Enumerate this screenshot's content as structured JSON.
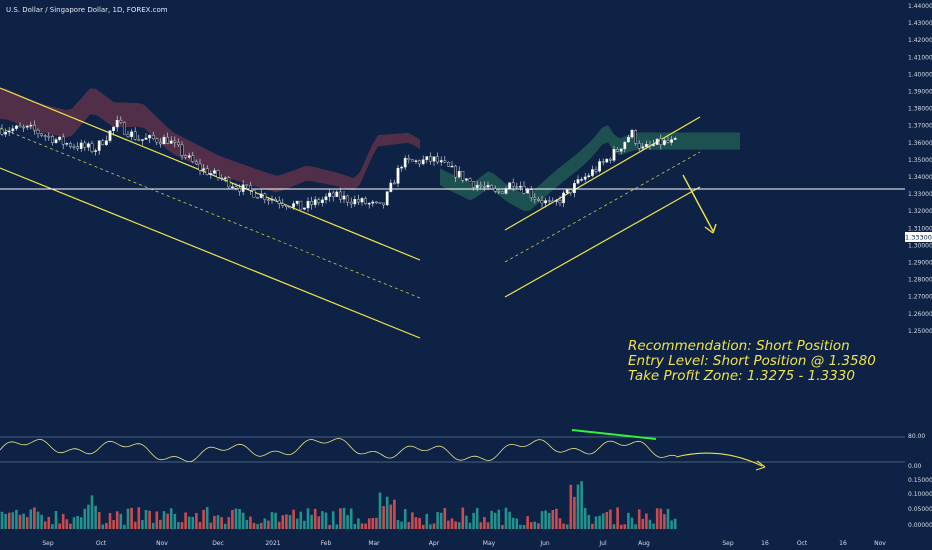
{
  "title": "U.S. Dollar / Singapore Dollar, 1D, FOREX.com",
  "colors": {
    "background": "#0d2245",
    "channel": "#f2e34a",
    "candle_up": "#26a69a",
    "candle_down": "#ef5350",
    "candle_wick": "#dfe5ee",
    "cloud_bear": "#8a3b4a",
    "cloud_bull": "#2e7d5e",
    "oscillator": "#e9e38a",
    "divergence": "#2ef23a",
    "current_price_line": "#ffffff",
    "tick_text": "#d8dde6"
  },
  "chart_data": {
    "type": "candlestick",
    "instrument": "U.S. Dollar / Singapore Dollar",
    "timeframe": "1D",
    "source": "FOREX.com",
    "x_labels": [
      "Sep",
      "Oct",
      "Nov",
      "Dec",
      "2021",
      "Feb",
      "Mar",
      "Apr",
      "May",
      "Jun",
      "Jul",
      "Aug",
      "Sep",
      "16",
      "Oct",
      "16",
      "Nov"
    ],
    "price_axis": {
      "ylim": [
        1.2,
        1.44
      ],
      "ticks": [
        "1.44000",
        "1.43000",
        "1.42000",
        "1.41000",
        "1.40000",
        "1.39000",
        "1.38000",
        "1.37000",
        "1.36000",
        "1.35000",
        "1.34000",
        "1.33000",
        "1.32000",
        "1.31000",
        "1.30000",
        "1.29000",
        "1.28000",
        "1.27000",
        "1.26000",
        "1.25000"
      ]
    },
    "current_price": {
      "value": 1.333,
      "label": "1.33300"
    },
    "close_path": [
      [
        "Aug 20",
        1.368
      ],
      [
        "Sep 10",
        1.36
      ],
      [
        "Sep 28",
        1.356
      ],
      [
        "Oct 9",
        1.371
      ],
      [
        "Oct 20",
        1.362
      ],
      [
        "Nov 4",
        1.362
      ],
      [
        "Nov 20",
        1.346
      ],
      [
        "Dec 15",
        1.333
      ],
      [
        "Jan 5",
        1.326
      ],
      [
        "Jan 18",
        1.322
      ],
      [
        "Feb 5",
        1.329
      ],
      [
        "Feb 25",
        1.325
      ],
      [
        "Mar 5",
        1.322
      ],
      [
        "Mar 15",
        1.348
      ],
      [
        "Apr 1",
        1.35
      ],
      [
        "Apr 20",
        1.338
      ],
      [
        "May 5",
        1.33
      ],
      [
        "May 15",
        1.338
      ],
      [
        "May 25",
        1.329
      ],
      [
        "Jun 5",
        1.323
      ],
      [
        "Jun 20",
        1.338
      ],
      [
        "Jul 1",
        1.348
      ],
      [
        "Jul 12",
        1.356
      ],
      [
        "Jul 22",
        1.366
      ],
      [
        "Jul 30",
        1.356
      ],
      [
        "Aug 10",
        1.36
      ]
    ],
    "indicators": {
      "cloud_band": "bearish (red) from Aug to Mar, bullish (green) from May to Aug",
      "oscillator": {
        "ticks": [
          "80.00",
          "0.00"
        ],
        "levels": [
          80,
          0
        ],
        "divergence_line": "bearish divergence drawn across Jul peaks"
      },
      "volume": {
        "ticks": [
          "0.15000",
          "0.10000",
          "0.05000",
          "0.00000"
        ],
        "ylim": [
          0,
          0.15
        ]
      }
    },
    "annotations": {
      "recommendation": "Recommendation: Short Position",
      "entry": "Entry Level: Short Position @ 1.3580",
      "take_profit": "Take Profit Zone: 1.3275 - 1.3330"
    }
  }
}
